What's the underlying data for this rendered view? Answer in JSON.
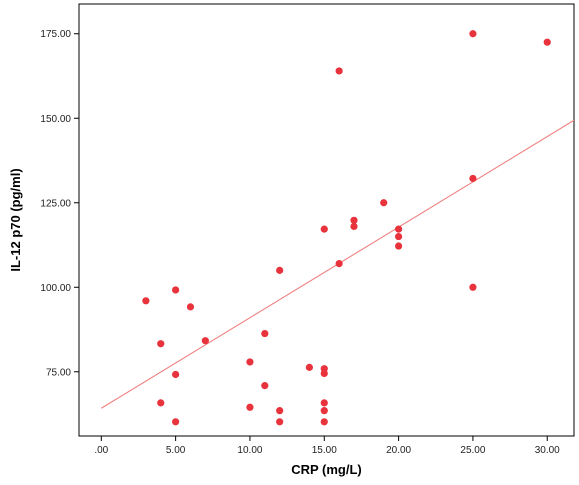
{
  "chart_data": {
    "type": "scatter",
    "xlabel": "CRP (mg/L)",
    "ylabel": "IL-12 p70 (pg/ml)",
    "xlim": [
      -1.5,
      31.8
    ],
    "ylim": [
      56.0,
      183.8
    ],
    "xticks": [
      {
        "value": 0,
        "label": ".00"
      },
      {
        "value": 5,
        "label": "5.00"
      },
      {
        "value": 10,
        "label": "10.00"
      },
      {
        "value": 15,
        "label": "15.00"
      },
      {
        "value": 20,
        "label": "20.00"
      },
      {
        "value": 25,
        "label": "25.00"
      },
      {
        "value": 30,
        "label": "30.00"
      }
    ],
    "yticks": [
      {
        "value": 75,
        "label": "75.00"
      },
      {
        "value": 100,
        "label": "100.00"
      },
      {
        "value": 125,
        "label": "125.00"
      },
      {
        "value": 150,
        "label": "150.00"
      },
      {
        "value": 175,
        "label": "175.00"
      }
    ],
    "grid": false,
    "legend": "none",
    "point_color": "#e8323c",
    "line_color": "#f07f7f",
    "fit_line": {
      "x": [
        0,
        31.8
      ],
      "y": [
        64.2,
        149.4
      ]
    },
    "points": [
      {
        "x": 3,
        "y": 96
      },
      {
        "x": 4,
        "y": 83.3
      },
      {
        "x": 4,
        "y": 65.8
      },
      {
        "x": 5,
        "y": 99.2
      },
      {
        "x": 5,
        "y": 74.2
      },
      {
        "x": 5,
        "y": 60.2
      },
      {
        "x": 6,
        "y": 94.2
      },
      {
        "x": 7,
        "y": 84.2
      },
      {
        "x": 10,
        "y": 77.9
      },
      {
        "x": 10,
        "y": 64.5
      },
      {
        "x": 11,
        "y": 86.3
      },
      {
        "x": 11,
        "y": 70.9
      },
      {
        "x": 12,
        "y": 105
      },
      {
        "x": 12,
        "y": 63.5
      },
      {
        "x": 12,
        "y": 60.2
      },
      {
        "x": 14,
        "y": 76.3
      },
      {
        "x": 15,
        "y": 117.2
      },
      {
        "x": 15,
        "y": 75.9
      },
      {
        "x": 15,
        "y": 74.5
      },
      {
        "x": 15,
        "y": 65.8
      },
      {
        "x": 15,
        "y": 63.5
      },
      {
        "x": 15,
        "y": 60.2
      },
      {
        "x": 16,
        "y": 164
      },
      {
        "x": 16,
        "y": 107
      },
      {
        "x": 17,
        "y": 119.8
      },
      {
        "x": 17,
        "y": 118
      },
      {
        "x": 19,
        "y": 125
      },
      {
        "x": 20,
        "y": 117.2
      },
      {
        "x": 20,
        "y": 115
      },
      {
        "x": 20,
        "y": 112.2
      },
      {
        "x": 25,
        "y": 175
      },
      {
        "x": 25,
        "y": 132.2
      },
      {
        "x": 25,
        "y": 100
      },
      {
        "x": 30,
        "y": 172.5
      }
    ]
  }
}
